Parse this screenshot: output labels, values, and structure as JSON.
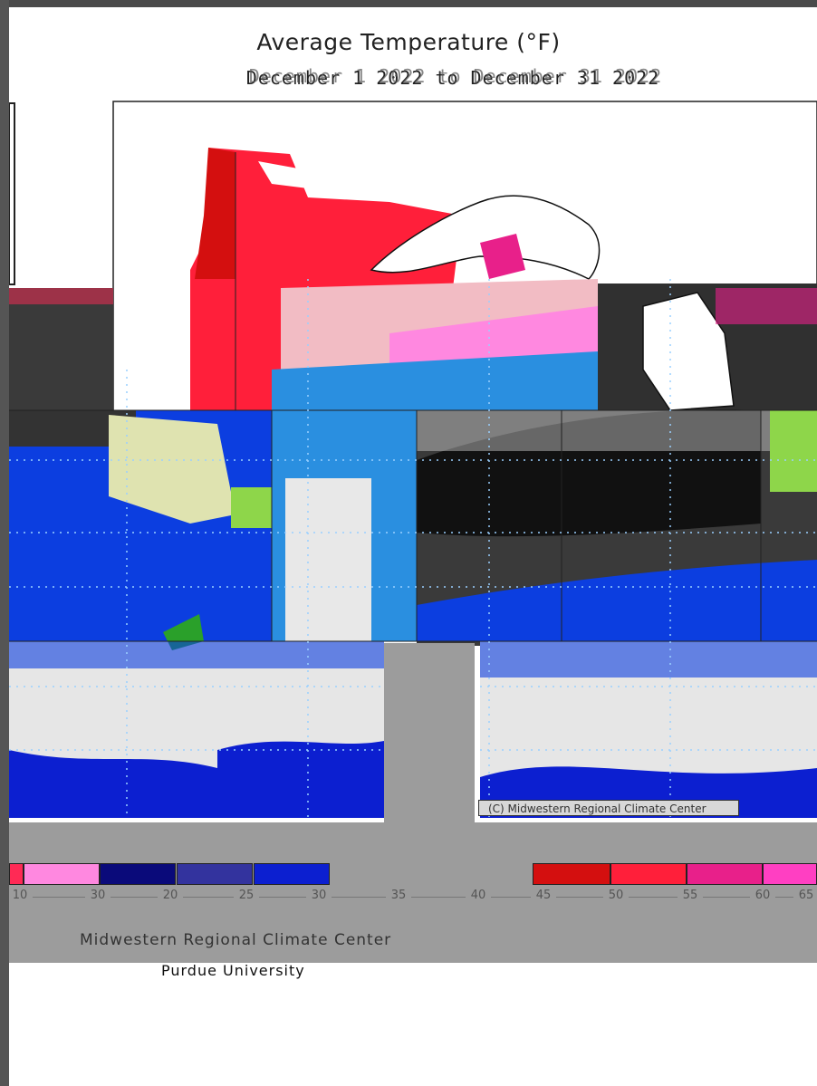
{
  "map": {
    "title": "Average Temperature (°F)",
    "subtitle": "December 1 2022 to December 31 2022",
    "credit": "(C) Midwestern Regional Climate Center"
  },
  "legend": {
    "swatch_colors": [
      "#ff2a55",
      "#ff88e0",
      "#0a0a7a",
      "#33339e",
      "#0c1fd0",
      "#d40f0f",
      "#ff1f3a",
      "#e8208a",
      "#ff3fc2"
    ],
    "tick_labels": [
      "10",
      "30",
      "20",
      "25",
      "30",
      "35",
      "40",
      "45",
      "50",
      "55",
      "60",
      "65"
    ]
  },
  "footer": {
    "organization": "Midwestern Regional Climate Center",
    "university": "Purdue University"
  },
  "colors": {
    "background": "#ffffff",
    "frame": "#555555",
    "legend_band": "#9c9c9c"
  }
}
